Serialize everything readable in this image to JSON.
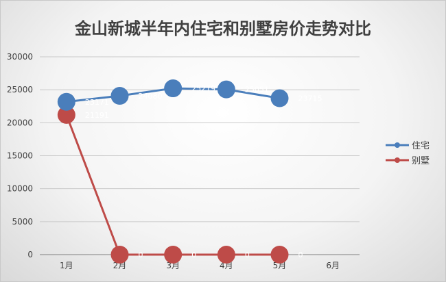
{
  "chart_data": {
    "type": "line",
    "title": "金山新城半年内住宅和别墅房价走势对比",
    "categories": [
      "1月",
      "2月",
      "3月",
      "4月",
      "5月",
      "6月"
    ],
    "ylim": [
      0,
      30000
    ],
    "yticks": [
      "0",
      "5000",
      "10000",
      "15000",
      "20000",
      "25000",
      "30000"
    ],
    "grid": true,
    "legend_position": "right",
    "series": [
      {
        "name": "住宅",
        "color": "#4a7ebb",
        "values": [
          23171,
          24080,
          25219,
          25051,
          23715,
          null
        ],
        "labels": [
          "23171",
          "24080",
          "25219",
          "25051",
          "23715",
          ""
        ]
      },
      {
        "name": "别墅",
        "color": "#be4b48",
        "values": [
          21191,
          0,
          0,
          0,
          0,
          null
        ],
        "labels": [
          "21191",
          "0",
          "0",
          "0",
          "0",
          ""
        ]
      }
    ]
  }
}
